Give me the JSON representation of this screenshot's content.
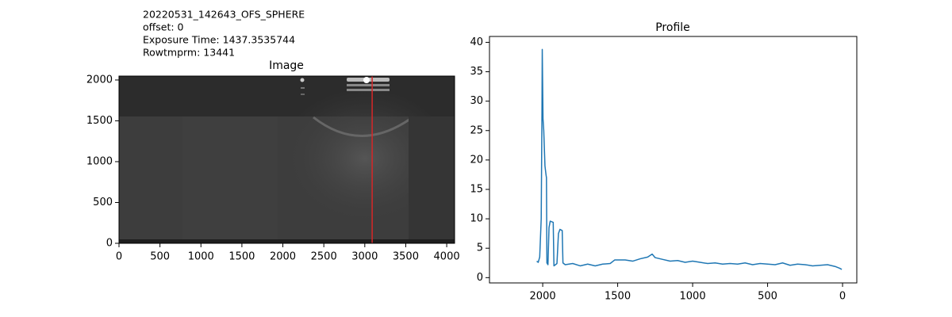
{
  "chart_data": [
    {
      "type": "image",
      "title": "Image",
      "annotations": [
        "20220531_142643_OFS_SPHERE",
        "offset: 0",
        "Exposure Time: 1437.3535744",
        "Rowtmprm: 13441"
      ],
      "xlim": [
        0,
        4096
      ],
      "ylim": [
        0,
        2048
      ],
      "xticks": [
        0,
        500,
        1000,
        1500,
        2000,
        2500,
        3000,
        3500,
        4000
      ],
      "yticks": [
        0,
        500,
        1000,
        1500,
        2000
      ],
      "marker_x": 3090,
      "marker_color": "#d62728"
    },
    {
      "type": "line",
      "title": "Profile",
      "color": "#1f77b4",
      "x": [
        2040,
        2030,
        2020,
        2010,
        2005,
        2003,
        1998,
        1993,
        1985,
        1978,
        1975,
        1972,
        1965,
        1958,
        1950,
        1940,
        1930,
        1925,
        1915,
        1905,
        1895,
        1885,
        1870,
        1865,
        1850,
        1800,
        1750,
        1700,
        1650,
        1600,
        1550,
        1520,
        1450,
        1400,
        1350,
        1300,
        1270,
        1250,
        1200,
        1150,
        1100,
        1050,
        1000,
        950,
        900,
        850,
        800,
        750,
        700,
        650,
        600,
        550,
        500,
        450,
        400,
        350,
        300,
        250,
        200,
        150,
        100,
        50,
        20,
        5
      ],
      "values": [
        2.8,
        2.6,
        3.5,
        10,
        28,
        38.8,
        27,
        25,
        19,
        17.5,
        17,
        2.5,
        2.2,
        8.5,
        9.6,
        9.5,
        9.4,
        2.0,
        2.2,
        2.4,
        7.5,
        8.2,
        8.0,
        2.5,
        2.2,
        2.4,
        2.0,
        2.3,
        2.0,
        2.3,
        2.4,
        3.0,
        3.0,
        2.8,
        3.2,
        3.5,
        4.0,
        3.4,
        3.1,
        2.8,
        2.9,
        2.6,
        2.8,
        2.6,
        2.4,
        2.5,
        2.3,
        2.4,
        2.3,
        2.5,
        2.2,
        2.4,
        2.3,
        2.2,
        2.5,
        2.1,
        2.3,
        2.2,
        2.0,
        2.1,
        2.2,
        1.9,
        1.6,
        1.4
      ],
      "xlim": [
        2355,
        -95
      ],
      "ylim": [
        -0.9,
        41
      ],
      "xticks": [
        2000,
        1500,
        1000,
        500,
        0
      ],
      "yticks": [
        0,
        5,
        10,
        15,
        20,
        25,
        30,
        35,
        40
      ]
    }
  ]
}
